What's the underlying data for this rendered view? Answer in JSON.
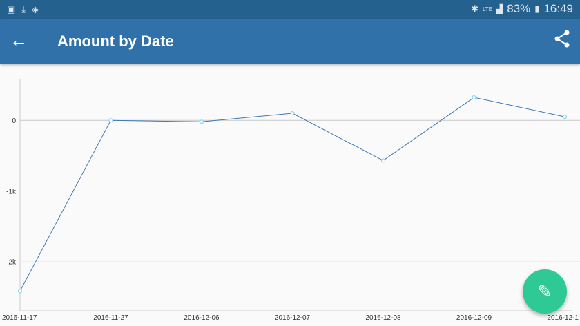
{
  "status": {
    "battery": "83%",
    "time": "16:49",
    "network": "LTE"
  },
  "appbar": {
    "title": "Amount by Date",
    "back_icon": "←",
    "share_icon": "share"
  },
  "chart_data": {
    "type": "line",
    "title": "Amount by Date",
    "categories": [
      "2016-11-17",
      "2016-11-27",
      "2016-12-06",
      "2016-12-07",
      "2016-12-08",
      "2016-12-09",
      "2016-12-1"
    ],
    "values": [
      -2420,
      0,
      -20,
      100,
      -570,
      325,
      50
    ],
    "yticks": [
      {
        "value": 0,
        "label": "0"
      },
      {
        "value": -1000,
        "label": "-1k"
      },
      {
        "value": -2000,
        "label": "-2k"
      }
    ],
    "ylim": [
      -2700,
      580
    ],
    "line_color": "#3a78b5",
    "marker_color": "#7fd8f8"
  }
}
